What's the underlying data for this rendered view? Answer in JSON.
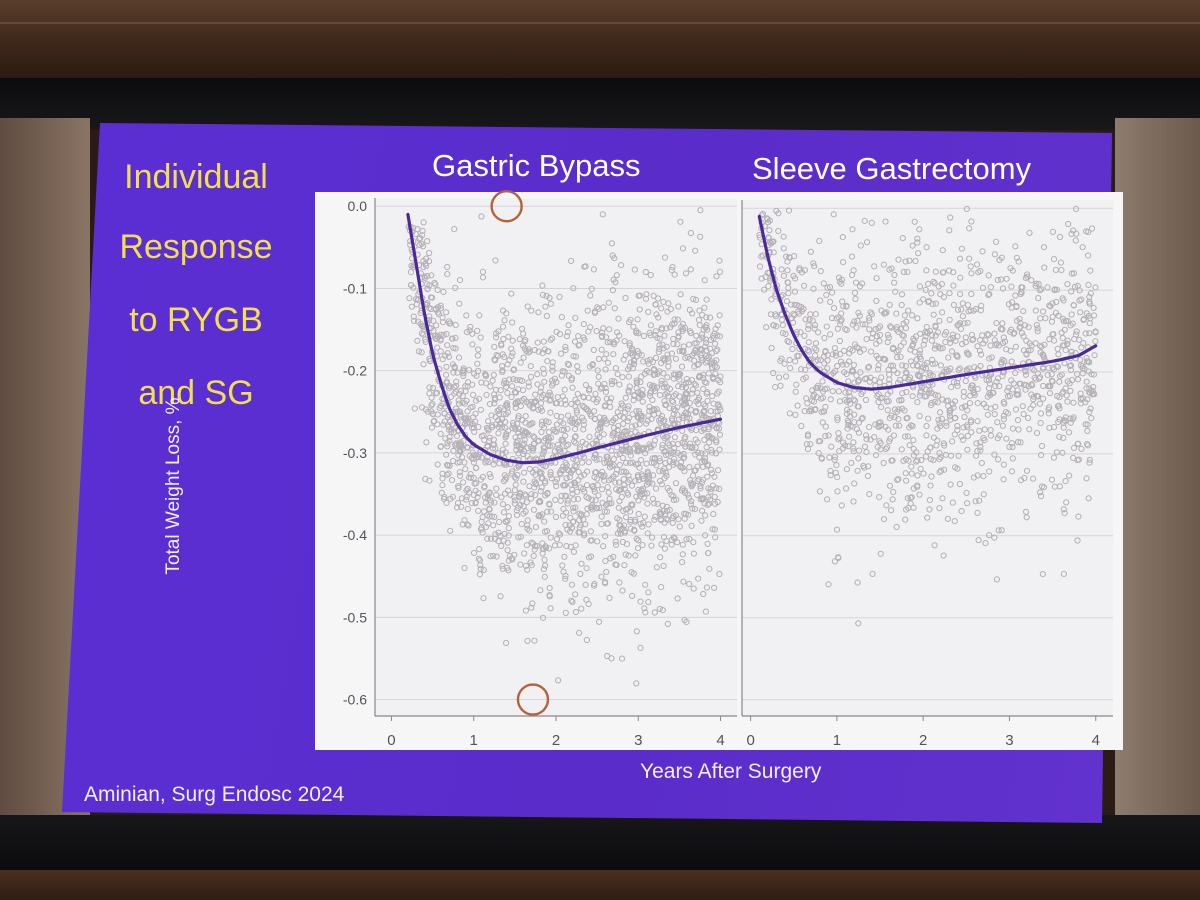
{
  "slide": {
    "side_title_lines": [
      "Individual",
      "Response",
      "to RYGB",
      "and SG"
    ],
    "panel_titles": [
      "Gastric Bypass",
      "Sleeve Gastrectomy"
    ],
    "xlabel": "Years After Surgery",
    "ylabel": "Total Weight Loss, %",
    "citation": "Aminian, Surg Endosc 2024"
  },
  "colors": {
    "slide_bg": "#5a2cc9",
    "side_title": "#f2e04a",
    "panel_bg": "#f1f0f2",
    "points": "#b4b0b6",
    "trend_line": "#4b2a98",
    "highlight_circle": "#b5623a"
  },
  "chart_data": [
    {
      "type": "scatter",
      "title": "Gastric Bypass",
      "xlabel": "Years After Surgery",
      "ylabel": "Total Weight Loss, %",
      "xlim": [
        -0.2,
        4.2
      ],
      "ylim": [
        -0.62,
        0.01
      ],
      "x_ticks": [
        0,
        1,
        2,
        3,
        4
      ],
      "y_ticks": [
        0.0,
        -0.1,
        -0.2,
        -0.3,
        -0.4,
        -0.5,
        -0.6
      ],
      "y_tick_labels": [
        "0.0",
        "-0.1",
        "-0.2",
        "-0.3",
        "-0.4",
        "-0.5",
        "-0.6"
      ],
      "grid": "horizontal",
      "scatter_summary": {
        "approx_point_count": 2200,
        "x_range": [
          0.2,
          4.0
        ],
        "y_range": [
          -0.6,
          0.0
        ],
        "spread_sd": 0.09
      },
      "trend": {
        "x": [
          0.2,
          0.3,
          0.4,
          0.5,
          0.6,
          0.7,
          0.8,
          0.9,
          1.0,
          1.2,
          1.4,
          1.6,
          1.8,
          2.0,
          2.2,
          2.5,
          3.0,
          3.5,
          4.0
        ],
        "y": [
          -0.01,
          -0.07,
          -0.13,
          -0.18,
          -0.215,
          -0.245,
          -0.265,
          -0.28,
          -0.29,
          -0.302,
          -0.309,
          -0.312,
          -0.311,
          -0.307,
          -0.302,
          -0.294,
          -0.281,
          -0.269,
          -0.259
        ]
      },
      "highlights": [
        {
          "x": 1.4,
          "y": 0.0
        },
        {
          "x": 1.72,
          "y": -0.6
        }
      ]
    },
    {
      "type": "scatter",
      "title": "Sleeve Gastrectomy",
      "xlabel": "Years After Surgery",
      "ylabel": "Total Weight Loss, %",
      "xlim": [
        -0.1,
        4.2
      ],
      "ylim": [
        -0.62,
        0.01
      ],
      "x_ticks": [
        0,
        1,
        2,
        3,
        4
      ],
      "y_ticks": [
        0.0,
        -0.1,
        -0.2,
        -0.3,
        -0.4,
        -0.5,
        -0.6
      ],
      "grid": "horizontal",
      "scatter_summary": {
        "approx_point_count": 1400,
        "x_range": [
          0.1,
          4.0
        ],
        "y_range": [
          -0.6,
          0.0
        ],
        "spread_sd": 0.085
      },
      "trend": {
        "x": [
          0.1,
          0.2,
          0.3,
          0.4,
          0.5,
          0.6,
          0.7,
          0.8,
          1.0,
          1.2,
          1.4,
          1.6,
          2.0,
          2.5,
          3.0,
          3.5,
          3.8,
          4.0
        ],
        "y": [
          -0.01,
          -0.06,
          -0.1,
          -0.13,
          -0.155,
          -0.175,
          -0.19,
          -0.2,
          -0.213,
          -0.219,
          -0.221,
          -0.219,
          -0.212,
          -0.203,
          -0.195,
          -0.187,
          -0.18,
          -0.168
        ]
      }
    }
  ]
}
